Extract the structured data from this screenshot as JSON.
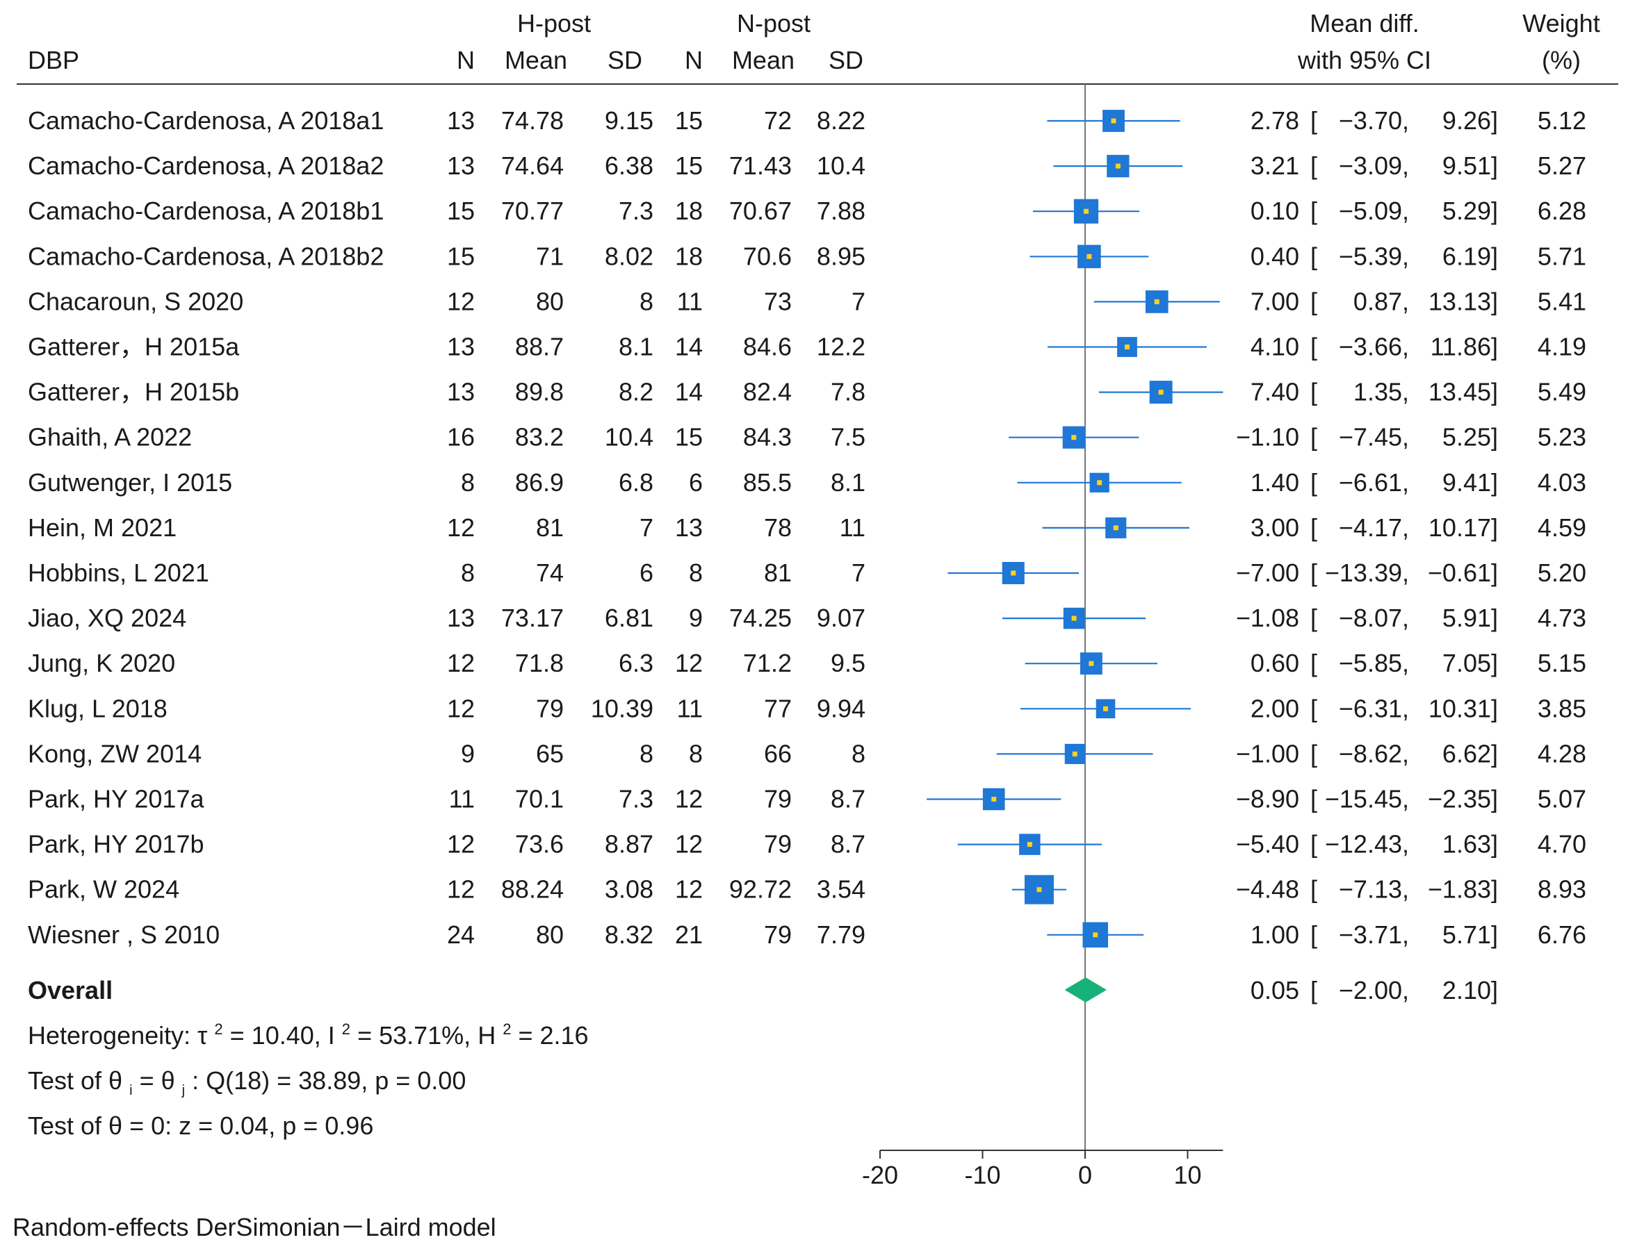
{
  "chart_data": {
    "type": "forest",
    "outcome": "DBP",
    "header": {
      "group1": "H-post",
      "group2": "N-post",
      "n": "N",
      "mean": "Mean",
      "sd": "SD",
      "effect_line1": "Mean diff.",
      "effect_line2": "with 95% CI",
      "weight_line1": "Weight",
      "weight_line2": "(%)"
    },
    "studies": [
      {
        "study": "Camacho-Cardenosa, A 2018a1",
        "n1": "13",
        "mean1": "74.78",
        "sd1": "9.15",
        "n2": "15",
        "mean2": "72",
        "sd2": "8.22",
        "md": 2.78,
        "lo": -3.7,
        "hi": 9.26,
        "md_text": "2.78",
        "lo_text": "-3.70",
        "hi_text": "9.26",
        "weight": 5.12,
        "weight_text": "5.12"
      },
      {
        "study": "Camacho-Cardenosa, A 2018a2",
        "n1": "13",
        "mean1": "74.64",
        "sd1": "6.38",
        "n2": "15",
        "mean2": "71.43",
        "sd2": "10.4",
        "md": 3.21,
        "lo": -3.09,
        "hi": 9.51,
        "md_text": "3.21",
        "lo_text": "-3.09",
        "hi_text": "9.51",
        "weight": 5.27,
        "weight_text": "5.27"
      },
      {
        "study": "Camacho-Cardenosa, A 2018b1",
        "n1": "15",
        "mean1": "70.77",
        "sd1": "7.3",
        "n2": "18",
        "mean2": "70.67",
        "sd2": "7.88",
        "md": 0.1,
        "lo": -5.09,
        "hi": 5.29,
        "md_text": "0.10",
        "lo_text": "-5.09",
        "hi_text": "5.29",
        "weight": 6.28,
        "weight_text": "6.28"
      },
      {
        "study": "Camacho-Cardenosa, A 2018b2",
        "n1": "15",
        "mean1": "71",
        "sd1": "8.02",
        "n2": "18",
        "mean2": "70.6",
        "sd2": "8.95",
        "md": 0.4,
        "lo": -5.39,
        "hi": 6.19,
        "md_text": "0.40",
        "lo_text": "-5.39",
        "hi_text": "6.19",
        "weight": 5.71,
        "weight_text": "5.71"
      },
      {
        "study": "Chacaroun, S 2020",
        "n1": "12",
        "mean1": "80",
        "sd1": "8",
        "n2": "11",
        "mean2": "73",
        "sd2": "7",
        "md": 7.0,
        "lo": 0.87,
        "hi": 13.13,
        "md_text": "7.00",
        "lo_text": "0.87",
        "hi_text": "13.13",
        "weight": 5.41,
        "weight_text": "5.41"
      },
      {
        "study": "Gatterer，H 2015a",
        "n1": "13",
        "mean1": "88.7",
        "sd1": "8.1",
        "n2": "14",
        "mean2": "84.6",
        "sd2": "12.2",
        "md": 4.1,
        "lo": -3.66,
        "hi": 11.86,
        "md_text": "4.10",
        "lo_text": "-3.66",
        "hi_text": "11.86",
        "weight": 4.19,
        "weight_text": "4.19"
      },
      {
        "study": "Gatterer，H 2015b",
        "n1": "13",
        "mean1": "89.8",
        "sd1": "8.2",
        "n2": "14",
        "mean2": "82.4",
        "sd2": "7.8",
        "md": 7.4,
        "lo": 1.35,
        "hi": 13.45,
        "md_text": "7.40",
        "lo_text": "1.35",
        "hi_text": "13.45",
        "weight": 5.49,
        "weight_text": "5.49"
      },
      {
        "study": "Ghaith, A 2022",
        "n1": "16",
        "mean1": "83.2",
        "sd1": "10.4",
        "n2": "15",
        "mean2": "84.3",
        "sd2": "7.5",
        "md": -1.1,
        "lo": -7.45,
        "hi": 5.25,
        "md_text": "-1.10",
        "lo_text": "-7.45",
        "hi_text": "5.25",
        "weight": 5.23,
        "weight_text": "5.23"
      },
      {
        "study": "Gutwenger, I 2015",
        "n1": "8",
        "mean1": "86.9",
        "sd1": "6.8",
        "n2": "6",
        "mean2": "85.5",
        "sd2": "8.1",
        "md": 1.4,
        "lo": -6.61,
        "hi": 9.41,
        "md_text": "1.40",
        "lo_text": "-6.61",
        "hi_text": "9.41",
        "weight": 4.03,
        "weight_text": "4.03"
      },
      {
        "study": "Hein, M 2021",
        "n1": "12",
        "mean1": "81",
        "sd1": "7",
        "n2": "13",
        "mean2": "78",
        "sd2": "11",
        "md": 3.0,
        "lo": -4.17,
        "hi": 10.17,
        "md_text": "3.00",
        "lo_text": "-4.17",
        "hi_text": "10.17",
        "weight": 4.59,
        "weight_text": "4.59"
      },
      {
        "study": "Hobbins, L 2021",
        "n1": "8",
        "mean1": "74",
        "sd1": "6",
        "n2": "8",
        "mean2": "81",
        "sd2": "7",
        "md": -7.0,
        "lo": -13.39,
        "hi": -0.61,
        "md_text": "-7.00",
        "lo_text": "-13.39",
        "hi_text": "-0.61",
        "weight": 5.2,
        "weight_text": "5.20"
      },
      {
        "study": "Jiao, XQ 2024",
        "n1": "13",
        "mean1": "73.17",
        "sd1": "6.81",
        "n2": "9",
        "mean2": "74.25",
        "sd2": "9.07",
        "md": -1.08,
        "lo": -8.07,
        "hi": 5.91,
        "md_text": "-1.08",
        "lo_text": "-8.07",
        "hi_text": "5.91",
        "weight": 4.73,
        "weight_text": "4.73"
      },
      {
        "study": "Jung, K 2020",
        "n1": "12",
        "mean1": "71.8",
        "sd1": "6.3",
        "n2": "12",
        "mean2": "71.2",
        "sd2": "9.5",
        "md": 0.6,
        "lo": -5.85,
        "hi": 7.05,
        "md_text": "0.60",
        "lo_text": "-5.85",
        "hi_text": "7.05",
        "weight": 5.15,
        "weight_text": "5.15"
      },
      {
        "study": "Klug, L 2018",
        "n1": "12",
        "mean1": "79",
        "sd1": "10.39",
        "n2": "11",
        "mean2": "77",
        "sd2": "9.94",
        "md": 2.0,
        "lo": -6.31,
        "hi": 10.31,
        "md_text": "2.00",
        "lo_text": "-6.31",
        "hi_text": "10.31",
        "weight": 3.85,
        "weight_text": "3.85"
      },
      {
        "study": "Kong, ZW 2014",
        "n1": "9",
        "mean1": "65",
        "sd1": "8",
        "n2": "8",
        "mean2": "66",
        "sd2": "8",
        "md": -1.0,
        "lo": -8.62,
        "hi": 6.62,
        "md_text": "-1.00",
        "lo_text": "-8.62",
        "hi_text": "6.62",
        "weight": 4.28,
        "weight_text": "4.28"
      },
      {
        "study": "Park, HY 2017a",
        "n1": "11",
        "mean1": "70.1",
        "sd1": "7.3",
        "n2": "12",
        "mean2": "79",
        "sd2": "8.7",
        "md": -8.9,
        "lo": -15.45,
        "hi": -2.35,
        "md_text": "-8.90",
        "lo_text": "-15.45",
        "hi_text": "-2.35",
        "weight": 5.07,
        "weight_text": "5.07"
      },
      {
        "study": "Park, HY 2017b",
        "n1": "12",
        "mean1": "73.6",
        "sd1": "8.87",
        "n2": "12",
        "mean2": "79",
        "sd2": "8.7",
        "md": -5.4,
        "lo": -12.43,
        "hi": 1.63,
        "md_text": "-5.40",
        "lo_text": "-12.43",
        "hi_text": "1.63",
        "weight": 4.7,
        "weight_text": "4.70"
      },
      {
        "study": "Park, W 2024",
        "n1": "12",
        "mean1": "88.24",
        "sd1": "3.08",
        "n2": "12",
        "mean2": "92.72",
        "sd2": "3.54",
        "md": -4.48,
        "lo": -7.13,
        "hi": -1.83,
        "md_text": "-4.48",
        "lo_text": "-7.13",
        "hi_text": "-1.83",
        "weight": 8.93,
        "weight_text": "8.93"
      },
      {
        "study": "Wiesner , S 2010",
        "n1": "24",
        "mean1": "80",
        "sd1": "8.32",
        "n2": "21",
        "mean2": "79",
        "sd2": "7.79",
        "md": 1.0,
        "lo": -3.71,
        "hi": 5.71,
        "md_text": "1.00",
        "lo_text": "-3.71",
        "hi_text": "5.71",
        "weight": 6.76,
        "weight_text": "6.76"
      }
    ],
    "overall": {
      "label": "Overall",
      "md": 0.05,
      "lo": -2.0,
      "hi": 2.1,
      "md_text": "0.05",
      "lo_text": "-2.00",
      "hi_text": "2.10"
    },
    "heterogeneity": {
      "prefix": "Heterogeneity: τ",
      "tau2_value": " = 10.40, I",
      "i2_value": " = 53.71%, H",
      "h2_value": " = 2.16",
      "sup": "2"
    },
    "test_equal": {
      "prefix": "Test of θ",
      "sub_i": "i",
      "mid": " = θ",
      "sub_j": "j",
      "suffix": ": Q(18) = 38.89, p = 0.00"
    },
    "test_zero": "Test of θ = 0: z = 0.04, p = 0.96",
    "xaxis": {
      "ticks": [
        -20,
        -10,
        0,
        10
      ],
      "tick_labels": [
        "-20",
        "-10",
        "0",
        "10"
      ],
      "range": [
        -20,
        13.45
      ],
      "null_line": 0
    },
    "colors": {
      "box": "#1f77d6",
      "box_dot": "#ffd21a",
      "ci_line": "#1f77d6",
      "diamond": "#17b27a",
      "axis": "#333333"
    },
    "footer": "Random-effects DerSimonian－Laird model"
  }
}
